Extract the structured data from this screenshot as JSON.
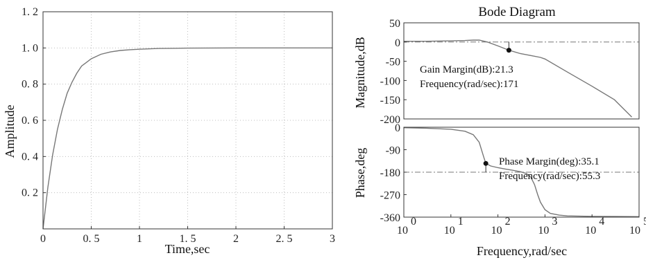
{
  "chart_data": [
    {
      "type": "line",
      "title": "",
      "xlabel": "Time,sec",
      "ylabel": "Amplitude",
      "xlim": [
        0,
        3
      ],
      "ylim": [
        0,
        1.2
      ],
      "xticks": [
        0,
        0.5,
        1,
        1.5,
        2,
        2.5,
        3
      ],
      "xtick_labels": [
        "0",
        "0. 5",
        "1",
        "1. 5",
        "2",
        "2. 5",
        "3"
      ],
      "yticks": [
        0.2,
        0.4,
        0.6,
        0.8,
        1.0,
        1.2
      ],
      "ytick_labels": [
        "0. 2",
        "0. 4",
        "0. 6",
        "0. 8",
        "1. 0",
        "1. 2"
      ],
      "grid": true,
      "series": [
        {
          "x": [
            0,
            0.05,
            0.1,
            0.15,
            0.2,
            0.25,
            0.3,
            0.35,
            0.4,
            0.45,
            0.5,
            0.6,
            0.7,
            0.8,
            0.9,
            1.0,
            1.2,
            1.5,
            2.0,
            2.5,
            3.0
          ],
          "values": [
            0,
            0.23,
            0.41,
            0.55,
            0.66,
            0.75,
            0.81,
            0.86,
            0.9,
            0.92,
            0.94,
            0.965,
            0.978,
            0.986,
            0.99,
            0.993,
            0.997,
            0.999,
            1.0,
            1.0,
            1.0
          ]
        }
      ]
    },
    {
      "type": "line",
      "title": "Bode Diagram",
      "xlabel": "",
      "ylabel": "Magnitude,dB",
      "xscale": "log",
      "xlim": [
        1,
        100000
      ],
      "ylim": [
        -200,
        50
      ],
      "yticks": [
        50,
        0,
        -50,
        -100,
        -150,
        -200
      ],
      "ytick_labels": [
        "50",
        "0",
        "-50",
        "-100",
        "-150",
        "-200"
      ],
      "grid": false,
      "reference_line": 0,
      "marker": {
        "x": 171,
        "y": -21.3
      },
      "annotation": [
        "Gain Margin(dB):21.3",
        "Frequency(rad/sec):171"
      ],
      "series": [
        {
          "x": [
            1,
            3,
            10,
            20,
            30,
            40,
            60,
            100,
            171,
            300,
            500,
            800,
            1000,
            3000,
            10000,
            30000,
            70000
          ],
          "values": [
            2,
            2,
            3,
            4,
            5,
            5,
            0,
            -10,
            -21.3,
            -30,
            -35,
            -40,
            -44,
            -78,
            -115,
            -150,
            -195
          ]
        }
      ]
    },
    {
      "type": "line",
      "title": "",
      "xlabel": "Frequency,rad/sec",
      "ylabel": "Phase,deg",
      "xscale": "log",
      "xlim": [
        1,
        100000
      ],
      "ylim": [
        -360,
        0
      ],
      "xticks": [
        1,
        10,
        100,
        1000,
        10000,
        100000
      ],
      "xtick_labels": [
        "10",
        "10",
        "10",
        "10",
        "10",
        "10"
      ],
      "xtick_exponents": [
        "0",
        "1",
        "2",
        "3",
        "4",
        "5"
      ],
      "yticks": [
        0,
        -90,
        -180,
        -270,
        -360
      ],
      "ytick_labels": [
        "0",
        "-90",
        "-180",
        "-270",
        "-360"
      ],
      "grid": false,
      "reference_line": -180,
      "marker": {
        "x": 55.3,
        "y": -144.9
      },
      "annotation": [
        "Phase Margin(deg):35.1",
        "Frequency(rad/sec):55.3"
      ],
      "series": [
        {
          "x": [
            1,
            3,
            10,
            20,
            30,
            40,
            50,
            55.3,
            70,
            100,
            150,
            200,
            300,
            400,
            500,
            600,
            700,
            800,
            1000,
            1300,
            2000,
            3000,
            10000,
            100000
          ],
          "values": [
            -2,
            -4,
            -8,
            -16,
            -30,
            -60,
            -120,
            -144.9,
            -155,
            -162,
            -168,
            -172,
            -178,
            -185,
            -200,
            -230,
            -270,
            -300,
            -330,
            -345,
            -352,
            -355,
            -357,
            -358
          ]
        }
      ]
    }
  ]
}
